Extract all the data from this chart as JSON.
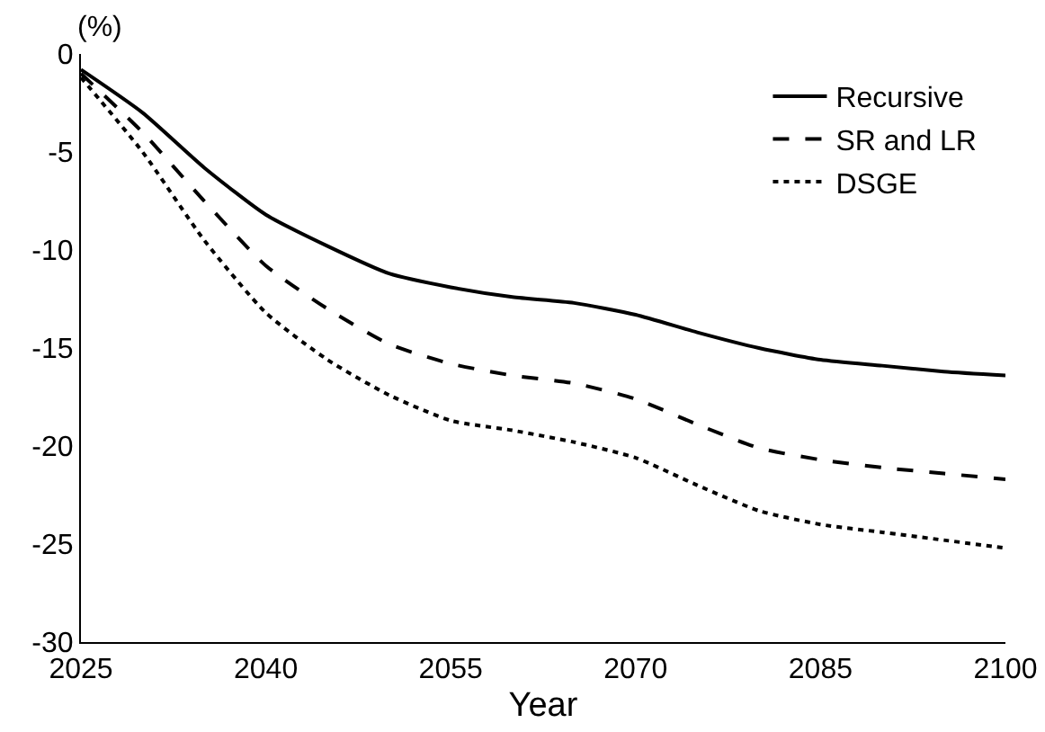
{
  "chart_data": {
    "type": "line",
    "xlabel": "Year",
    "ylabel": "(%)",
    "x": [
      2025,
      2030,
      2035,
      2040,
      2045,
      2050,
      2055,
      2060,
      2065,
      2070,
      2075,
      2080,
      2085,
      2090,
      2095,
      2100
    ],
    "series": [
      {
        "name": "Recursive",
        "color": "#000000",
        "line_style": "solid",
        "values": [
          -0.8,
          -3,
          -5.8,
          -8.2,
          -9.8,
          -11.2,
          -11.9,
          -12.4,
          -12.7,
          -13.3,
          -14.2,
          -15.0,
          -15.6,
          -15.9,
          -16.2,
          -16.4
        ]
      },
      {
        "name": "SR and LR",
        "color": "#000000",
        "line_style": "dashed",
        "values": [
          -1.0,
          -4,
          -7.5,
          -10.8,
          -13,
          -14.8,
          -15.8,
          -16.4,
          -16.8,
          -17.6,
          -18.9,
          -20.1,
          -20.7,
          -21.1,
          -21.4,
          -21.7
        ]
      },
      {
        "name": "DSGE",
        "color": "#000000",
        "line_style": "dotted",
        "values": [
          -1.2,
          -5,
          -9.5,
          -13.2,
          -15.6,
          -17.4,
          -18.7,
          -19.2,
          -19.8,
          -20.6,
          -22.0,
          -23.3,
          -24.0,
          -24.4,
          -24.8,
          -25.2
        ]
      }
    ],
    "xlim": [
      2025,
      2100
    ],
    "xticks": [
      2025,
      2040,
      2055,
      2070,
      2085,
      2100
    ],
    "ylim": [
      -30,
      0
    ],
    "yticks": [
      -30,
      -25,
      -20,
      -15,
      -10,
      -5,
      0
    ],
    "grid": false,
    "legend": "top right",
    "marker": "none"
  }
}
